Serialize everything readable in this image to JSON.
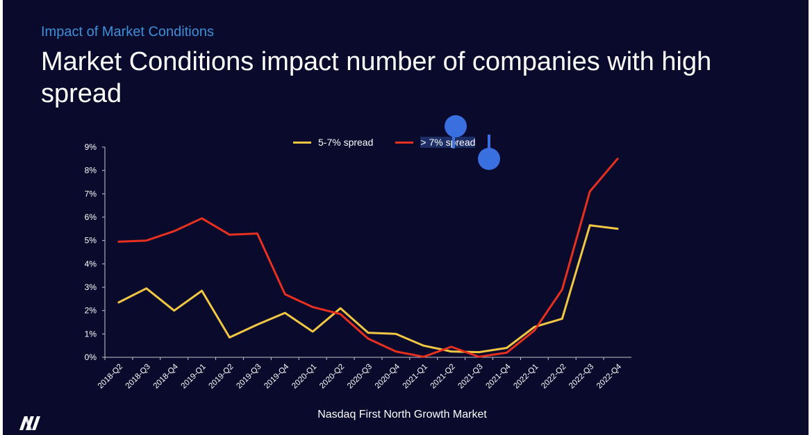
{
  "slide": {
    "kicker": "Impact of Market Conditions",
    "title": "Market Conditions impact number of companies with high spread",
    "source_note": "Nasdaq First North Growth Market",
    "logo_icon": "nasdaq-logo-icon",
    "background_color": "#0a0a2d",
    "kicker_color": "#3d8fd6"
  },
  "chart_data": {
    "type": "line",
    "title": "",
    "xlabel": "",
    "ylabel": "",
    "ylim": [
      0,
      9
    ],
    "y_unit": "%",
    "y_ticks": [
      "0%",
      "1%",
      "2%",
      "3%",
      "4%",
      "5%",
      "6%",
      "7%",
      "8%",
      "9%"
    ],
    "grid": false,
    "legend_position": "top",
    "categories": [
      "2018-Q2",
      "2018-Q3",
      "2018-Q4",
      "2019-Q1",
      "2019-Q2",
      "2019-Q3",
      "2019-Q4",
      "2020-Q1",
      "2020-Q2",
      "2020-Q3",
      "2020-Q4",
      "2021-Q1",
      "2021-Q2",
      "2021-Q3",
      "2021-Q4",
      "2022-Q1",
      "2022-Q2",
      "2022-Q3",
      "2022-Q4"
    ],
    "series": [
      {
        "name": "5-7% spread",
        "color": "#f2c744",
        "values": [
          2.35,
          2.95,
          2.0,
          2.85,
          0.85,
          1.4,
          1.9,
          1.1,
          2.1,
          1.05,
          1.0,
          0.5,
          0.25,
          0.22,
          0.4,
          1.3,
          1.65,
          5.65,
          5.5
        ]
      },
      {
        "name": "> 7% spread",
        "color": "#e8301f",
        "values": [
          4.95,
          5.0,
          5.4,
          5.95,
          5.25,
          5.3,
          2.7,
          2.15,
          1.85,
          0.8,
          0.25,
          0.02,
          0.45,
          0.02,
          0.2,
          1.15,
          2.9,
          7.1,
          8.5
        ]
      }
    ]
  }
}
